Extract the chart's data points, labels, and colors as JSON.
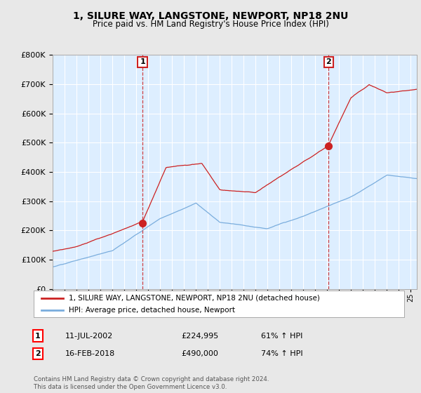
{
  "title": "1, SILURE WAY, LANGSTONE, NEWPORT, NP18 2NU",
  "subtitle": "Price paid vs. HM Land Registry's House Price Index (HPI)",
  "ylim": [
    0,
    800000
  ],
  "yticks": [
    0,
    100000,
    200000,
    300000,
    400000,
    500000,
    600000,
    700000,
    800000
  ],
  "xlim_start": 1995.0,
  "xlim_end": 2025.5,
  "sale1_date": 2002.53,
  "sale1_price": 224995,
  "sale2_date": 2018.12,
  "sale2_price": 490000,
  "property_color": "#cc2222",
  "hpi_color": "#7aaddd",
  "plot_bg_color": "#ddeeff",
  "background_color": "#e8e8e8",
  "legend_label1": "1, SILURE WAY, LANGSTONE, NEWPORT, NP18 2NU (detached house)",
  "legend_label2": "HPI: Average price, detached house, Newport",
  "sale1_text": "11-JUL-2002",
  "sale1_amount": "£224,995",
  "sale1_hpi": "61% ↑ HPI",
  "sale2_text": "16-FEB-2018",
  "sale2_amount": "£490,000",
  "sale2_hpi": "74% ↑ HPI",
  "footer": "Contains HM Land Registry data © Crown copyright and database right 2024.\nThis data is licensed under the Open Government Licence v3.0."
}
